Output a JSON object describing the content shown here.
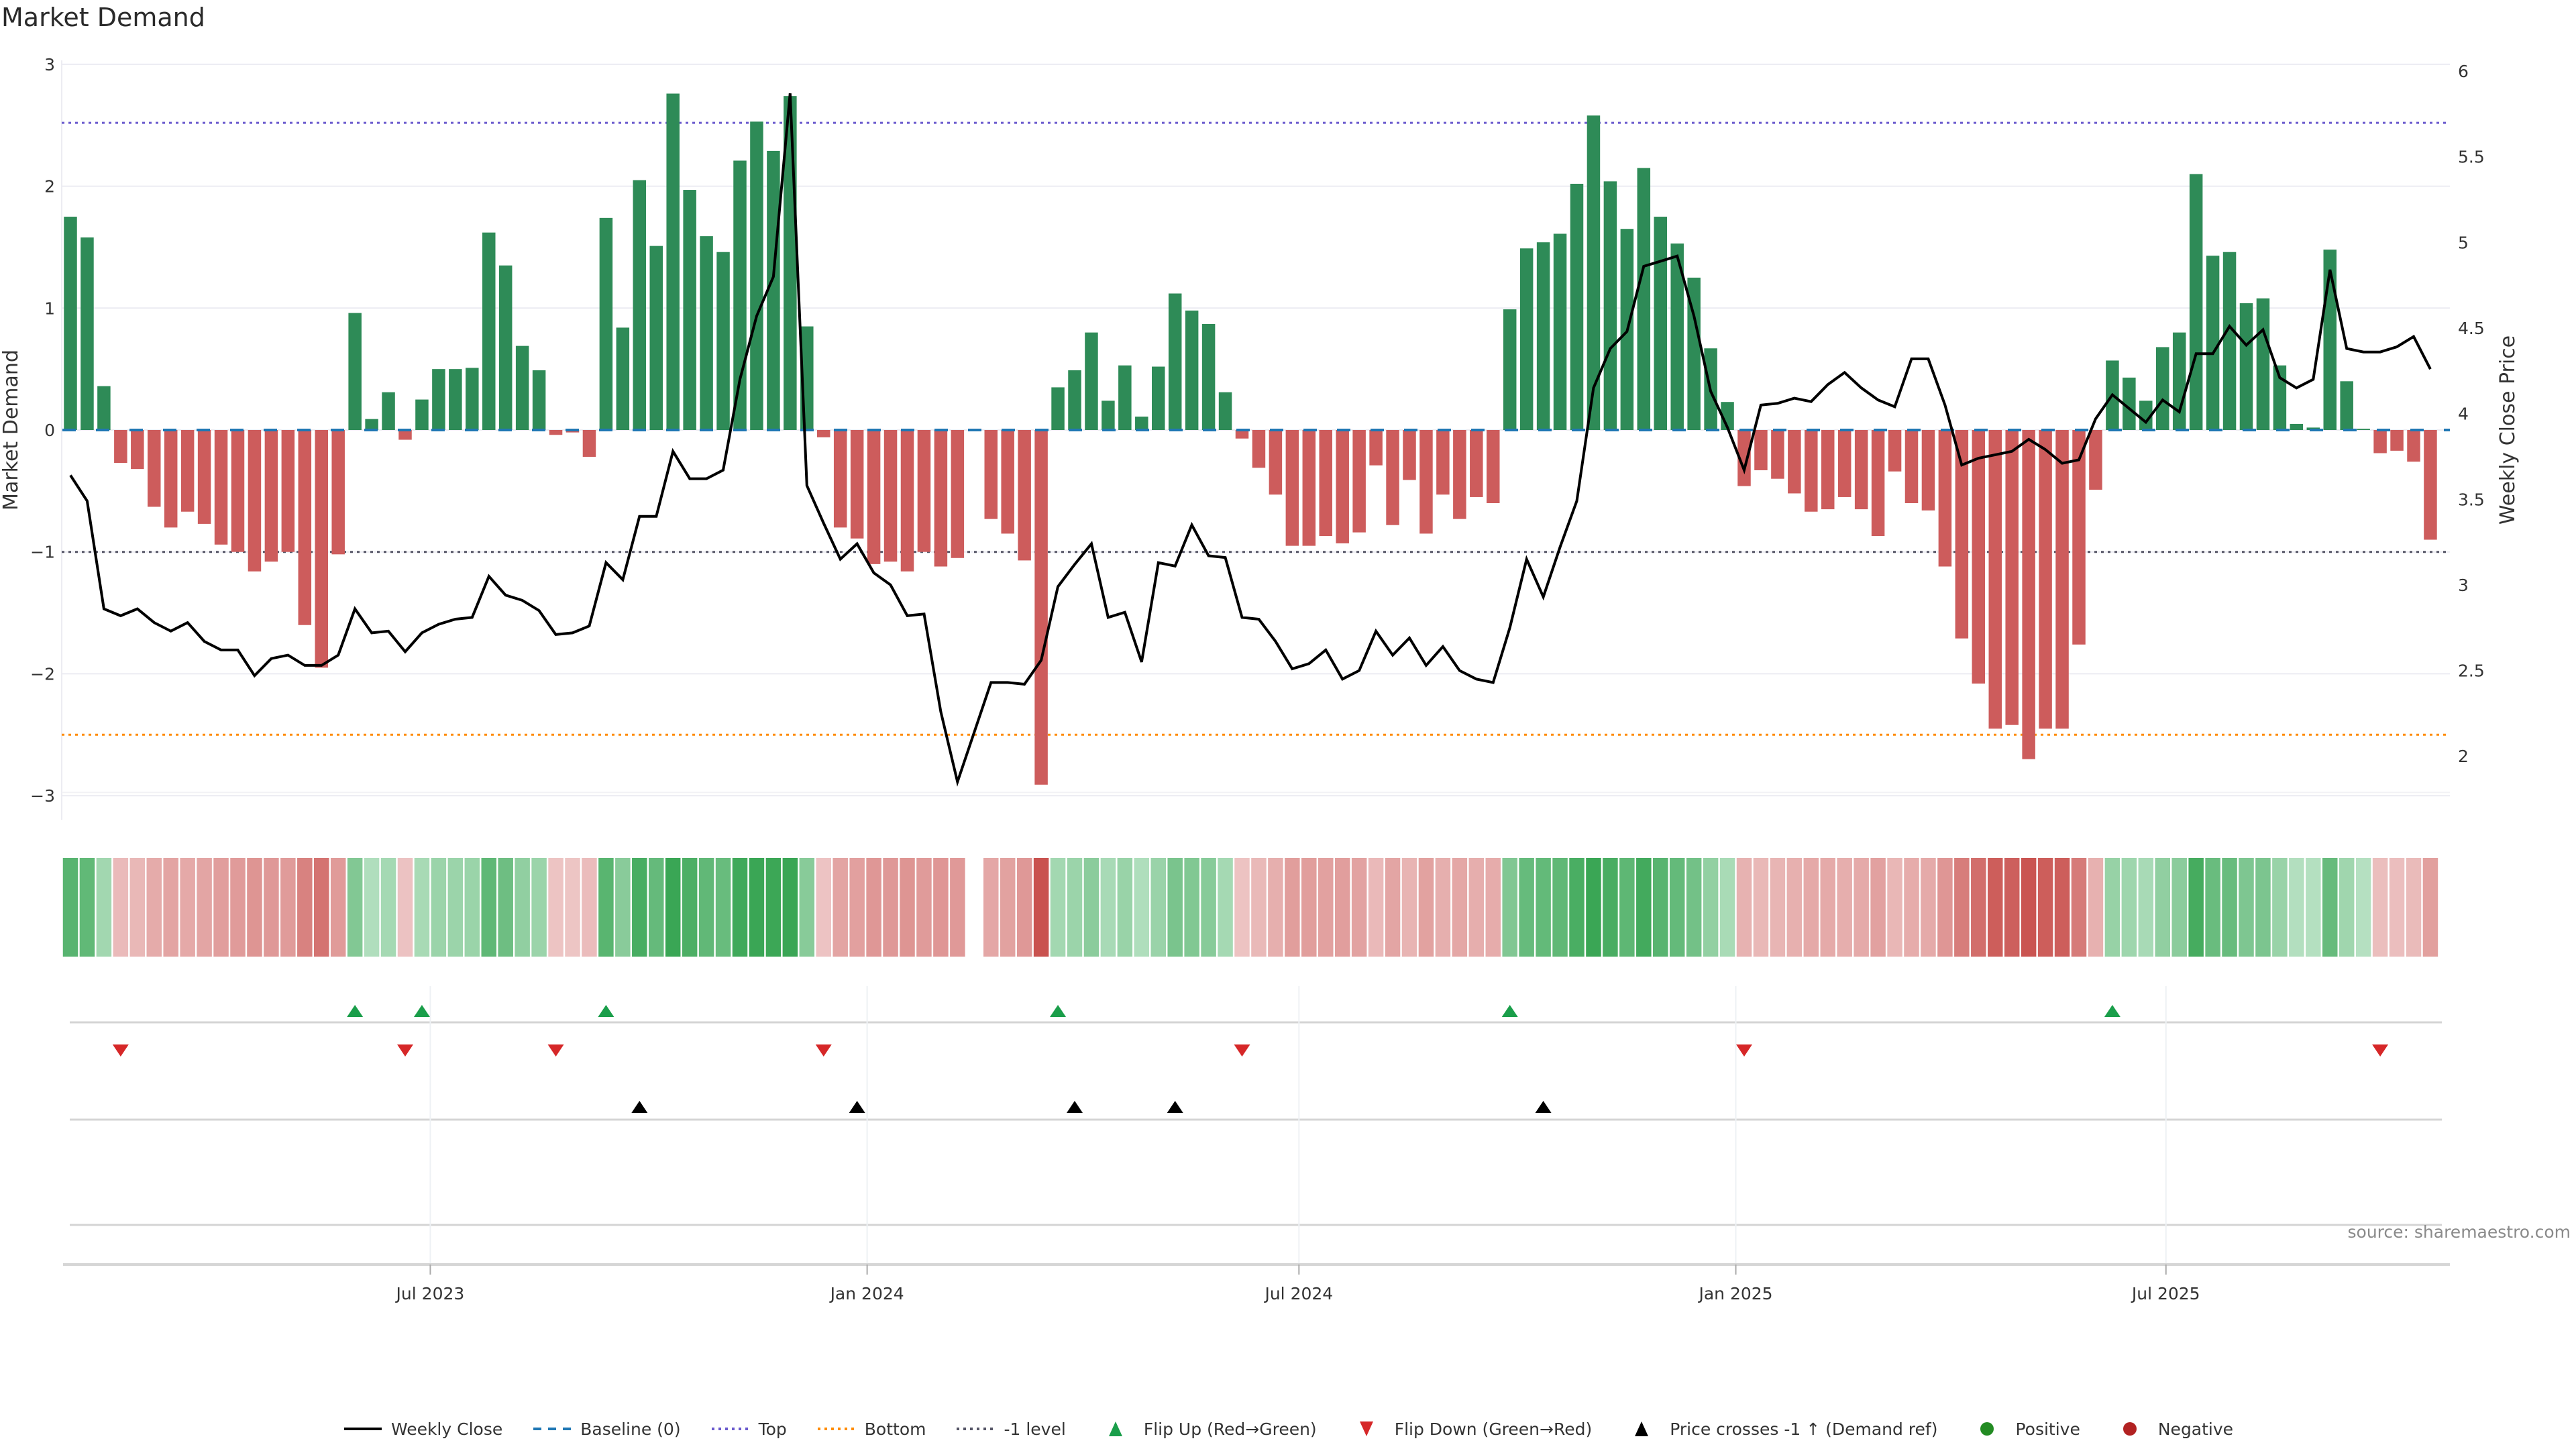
{
  "chart_data": {
    "type": "bar+line",
    "title": "Market Demand",
    "ylabel_left": "Market Demand",
    "ylabel_right": "Weekly Close Price",
    "source": "source: sharemaestro.com",
    "ylim_left": [
      -3.3,
      3.05
    ],
    "ylim_right": [
      1.8,
      6.05
    ],
    "left_ticks": [
      {
        "v": 3,
        "label": "3"
      },
      {
        "v": 2,
        "label": "2"
      },
      {
        "v": 1,
        "label": "1"
      },
      {
        "v": 0,
        "label": "0"
      },
      {
        "v": -1,
        "label": "−1"
      },
      {
        "v": -2,
        "label": "−2"
      },
      {
        "v": -3,
        "label": "−3"
      }
    ],
    "right_ticks": [
      {
        "v": 6,
        "label": "6"
      },
      {
        "v": 5.5,
        "label": "5.5"
      },
      {
        "v": 5,
        "label": "5"
      },
      {
        "v": 4.5,
        "label": "4.5"
      },
      {
        "v": 4,
        "label": "4"
      },
      {
        "v": 3.5,
        "label": "3.5"
      },
      {
        "v": 3,
        "label": "3"
      },
      {
        "v": 2.5,
        "label": "2.5"
      },
      {
        "v": 2,
        "label": "2"
      }
    ],
    "x_ticks": [
      {
        "week_index": 21.5,
        "label": "Jul 2023"
      },
      {
        "week_index": 47.6,
        "label": "Jan 2024"
      },
      {
        "week_index": 73.4,
        "label": "Jul 2024"
      },
      {
        "week_index": 99.5,
        "label": "Jan 2025"
      },
      {
        "week_index": 125.2,
        "label": "Jul 2025"
      }
    ],
    "start_week": "2023-01-30",
    "interval": "weekly",
    "reference_lines": {
      "baseline": 0,
      "top": 2.52,
      "bottom": -2.5,
      "minus_one": -1
    },
    "colors": {
      "positive": "#2e8b57",
      "negative": "#cd5c5c",
      "line": "#000000",
      "baseline": "#1f77b4",
      "top": "#6a5acd",
      "bottom": "#ff8c00",
      "minus_one": "#555566",
      "flip_up": "#1a9e4a",
      "flip_down": "#d62728",
      "cross": "#000000",
      "legend_pos": "#228b22",
      "legend_neg": "#b22222"
    },
    "demand": [
      1.75,
      1.58,
      0.36,
      -0.27,
      -0.32,
      -0.63,
      -0.8,
      -0.67,
      -0.77,
      -0.94,
      -1.0,
      -1.16,
      -1.08,
      -1.0,
      -1.6,
      -1.95,
      -1.02,
      0.96,
      0.09,
      0.31,
      -0.08,
      0.25,
      0.5,
      0.5,
      0.51,
      1.62,
      1.35,
      0.69,
      0.49,
      -0.04,
      -0.02,
      -0.22,
      1.74,
      0.84,
      2.05,
      1.51,
      2.76,
      1.97,
      1.59,
      1.46,
      2.21,
      2.53,
      2.29,
      2.74,
      0.85,
      -0.06,
      -0.8,
      -0.89,
      -1.1,
      -1.08,
      -1.16,
      -1.0,
      -1.12,
      -1.05,
      null,
      -0.73,
      -0.85,
      -1.07,
      -2.91,
      0.35,
      0.49,
      0.8,
      0.24,
      0.53,
      0.11,
      0.52,
      1.12,
      0.98,
      0.87,
      0.31,
      -0.07,
      -0.31,
      -0.53,
      -0.95,
      -0.95,
      -0.87,
      -0.93,
      -0.84,
      -0.29,
      -0.78,
      -0.41,
      -0.85,
      -0.53,
      -0.73,
      -0.55,
      -0.6,
      0.99,
      1.49,
      1.54,
      1.61,
      2.02,
      2.58,
      2.04,
      1.65,
      2.15,
      1.75,
      1.53,
      1.25,
      0.67,
      0.23,
      -0.46,
      -0.33,
      -0.4,
      -0.52,
      -0.67,
      -0.65,
      -0.55,
      -0.65,
      -0.87,
      -0.34,
      -0.6,
      -0.66,
      -1.12,
      -1.71,
      -2.08,
      -2.45,
      -2.42,
      -2.7,
      -2.45,
      -2.45,
      -1.76,
      -0.49,
      0.57,
      0.43,
      0.24,
      0.68,
      0.8,
      2.1,
      1.43,
      1.46,
      1.04,
      1.08,
      0.53,
      0.05,
      0.02,
      1.48,
      0.4,
      0.01,
      -0.19,
      -0.17,
      -0.26,
      -0.9
    ],
    "weekly_close": [
      3.64,
      3.49,
      2.86,
      2.82,
      2.86,
      2.78,
      2.73,
      2.78,
      2.67,
      2.62,
      2.62,
      2.47,
      2.57,
      2.59,
      2.53,
      2.53,
      2.59,
      2.86,
      2.72,
      2.73,
      2.61,
      2.72,
      2.77,
      2.8,
      2.81,
      3.05,
      2.94,
      2.91,
      2.85,
      2.71,
      2.72,
      2.76,
      3.13,
      3.03,
      3.4,
      3.4,
      3.78,
      3.62,
      3.62,
      3.67,
      4.2,
      4.57,
      4.8,
      5.87,
      3.58,
      3.36,
      3.15,
      3.24,
      3.07,
      3.0,
      2.82,
      2.83,
      2.26,
      1.85,
      2.14,
      2.43,
      2.43,
      2.42,
      2.56,
      2.99,
      3.12,
      3.24,
      2.81,
      2.84,
      2.55,
      3.13,
      3.11,
      3.35,
      3.17,
      3.16,
      2.81,
      2.8,
      2.67,
      2.51,
      2.54,
      2.62,
      2.45,
      2.5,
      2.73,
      2.59,
      2.69,
      2.53,
      2.64,
      2.5,
      2.45,
      2.43,
      2.75,
      3.15,
      2.93,
      3.22,
      3.49,
      4.15,
      4.38,
      4.48,
      4.86,
      4.89,
      4.92,
      4.57,
      4.13,
      3.92,
      3.67,
      4.05,
      4.06,
      4.09,
      4.07,
      4.17,
      4.24,
      4.15,
      4.08,
      4.04,
      4.32,
      4.32,
      4.05,
      3.7,
      3.74,
      3.76,
      3.78,
      3.85,
      3.79,
      3.71,
      3.73,
      3.97,
      4.11,
      4.03,
      3.95,
      4.08,
      4.01,
      4.35,
      4.35,
      4.51,
      4.4,
      4.49,
      4.21,
      4.15,
      4.2,
      4.84,
      4.38,
      4.36,
      4.36,
      4.39,
      4.45,
      4.26
    ],
    "flip_up_weeks": [
      17,
      21,
      32,
      59,
      86,
      122
    ],
    "flip_down_weeks": [
      3,
      20,
      29,
      45,
      70,
      100,
      138
    ],
    "price_cross_weeks": [
      34,
      47,
      60,
      66,
      88
    ]
  },
  "legend": [
    {
      "key": "weekly-close",
      "label": "Weekly Close",
      "symbol": "line"
    },
    {
      "key": "baseline",
      "label": "Baseline (0)",
      "symbol": "dash"
    },
    {
      "key": "top",
      "label": "Top",
      "symbol": "dot-top"
    },
    {
      "key": "bottom",
      "label": "Bottom",
      "symbol": "dot-bottom"
    },
    {
      "key": "minus-one",
      "label": "-1 level",
      "symbol": "dot-minus"
    },
    {
      "key": "flip-up",
      "label": "Flip Up (Red→Green)",
      "symbol": "tri-up-green"
    },
    {
      "key": "flip-down",
      "label": "Flip Down (Green→Red)",
      "symbol": "tri-down-red"
    },
    {
      "key": "price-cross",
      "label": "Price crosses -1 ↑ (Demand ref)",
      "symbol": "tri-up-black"
    },
    {
      "key": "positive",
      "label": "Positive",
      "symbol": "dot-green"
    },
    {
      "key": "negative",
      "label": "Negative",
      "symbol": "dot-red"
    }
  ]
}
